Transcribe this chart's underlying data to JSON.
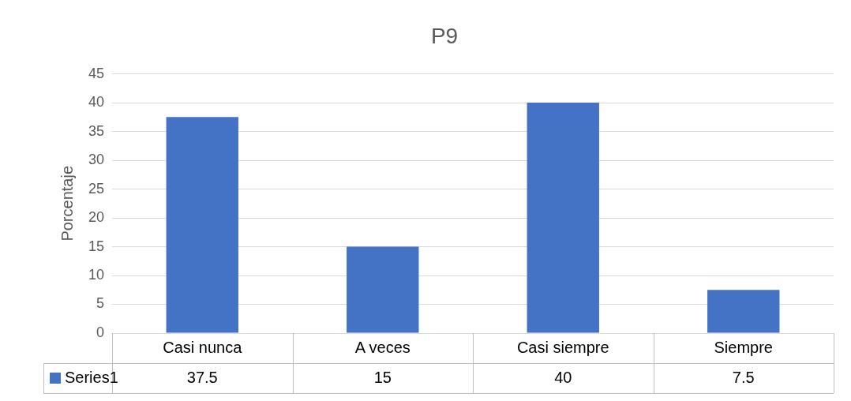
{
  "chart_data": {
    "type": "bar",
    "title": "P9",
    "ylabel": "Porcentaje",
    "categories": [
      "Casi nunca",
      "A veces",
      "Casi siempre",
      "Siempre"
    ],
    "series": [
      {
        "name": "Series1",
        "color": "#4472c4",
        "values": [
          37.5,
          15,
          40,
          7.5
        ]
      }
    ],
    "ylim": [
      0,
      45
    ],
    "yticks": [
      0,
      5,
      10,
      15,
      20,
      25,
      30,
      35,
      40,
      45
    ],
    "grid": true,
    "data_labels": true
  }
}
